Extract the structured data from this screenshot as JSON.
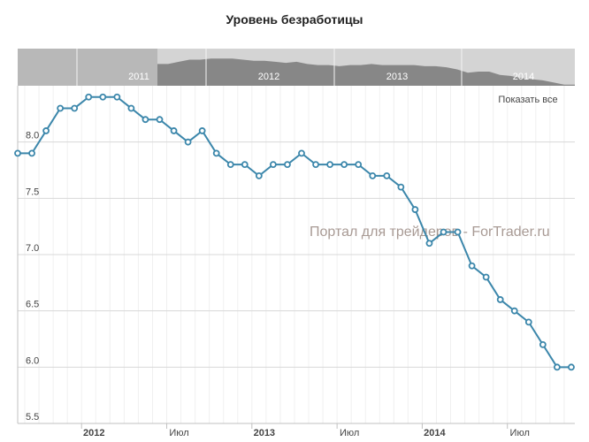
{
  "chart_data": {
    "type": "line",
    "title": "Уровень безработицы",
    "xlabel": "",
    "ylabel": "",
    "ylim": [
      5.5,
      8.5
    ],
    "yticks": [
      "5.5",
      "6.0",
      "6.5",
      "7.0",
      "7.5",
      "8.0"
    ],
    "xtick_labels": [
      {
        "label": "2012",
        "month": "2012-01",
        "bold": true
      },
      {
        "label": "Июл",
        "month": "2012-07",
        "bold": false
      },
      {
        "label": "2013",
        "month": "2013-01",
        "bold": true
      },
      {
        "label": "Июл",
        "month": "2013-07",
        "bold": false
      },
      {
        "label": "2014",
        "month": "2014-01",
        "bold": true
      },
      {
        "label": "Июл",
        "month": "2014-07",
        "bold": false
      }
    ],
    "x": [
      "2011-08",
      "2011-09",
      "2011-10",
      "2011-11",
      "2011-12",
      "2012-01",
      "2012-02",
      "2012-03",
      "2012-04",
      "2012-05",
      "2012-06",
      "2012-07",
      "2012-08",
      "2012-09",
      "2012-10",
      "2012-11",
      "2012-12",
      "2013-01",
      "2013-02",
      "2013-03",
      "2013-04",
      "2013-05",
      "2013-06",
      "2013-07",
      "2013-08",
      "2013-09",
      "2013-10",
      "2013-11",
      "2013-12",
      "2014-01",
      "2014-02",
      "2014-03",
      "2014-04",
      "2014-05",
      "2014-06",
      "2014-07",
      "2014-08",
      "2014-09",
      "2014-10",
      "2014-11"
    ],
    "series": [
      {
        "name": "Уровень безработицы",
        "color": "#3c87ab",
        "values": [
          7.9,
          7.9,
          8.1,
          8.3,
          8.3,
          8.4,
          8.4,
          8.4,
          8.3,
          8.2,
          8.2,
          8.1,
          8.0,
          8.1,
          7.9,
          7.8,
          7.8,
          7.7,
          7.8,
          7.8,
          7.9,
          7.8,
          7.8,
          7.8,
          7.8,
          7.7,
          7.7,
          7.6,
          7.4,
          7.1,
          7.2,
          7.2,
          6.9,
          6.8,
          6.6,
          6.5,
          6.4,
          6.2,
          6.0,
          6.0
        ]
      }
    ],
    "grid": true,
    "navigator": {
      "years": [
        "2011",
        "2012",
        "2013",
        "2014"
      ]
    },
    "show_all_label": "Показать все",
    "watermark": "Портал для трейдеров - ForTrader.ru"
  }
}
